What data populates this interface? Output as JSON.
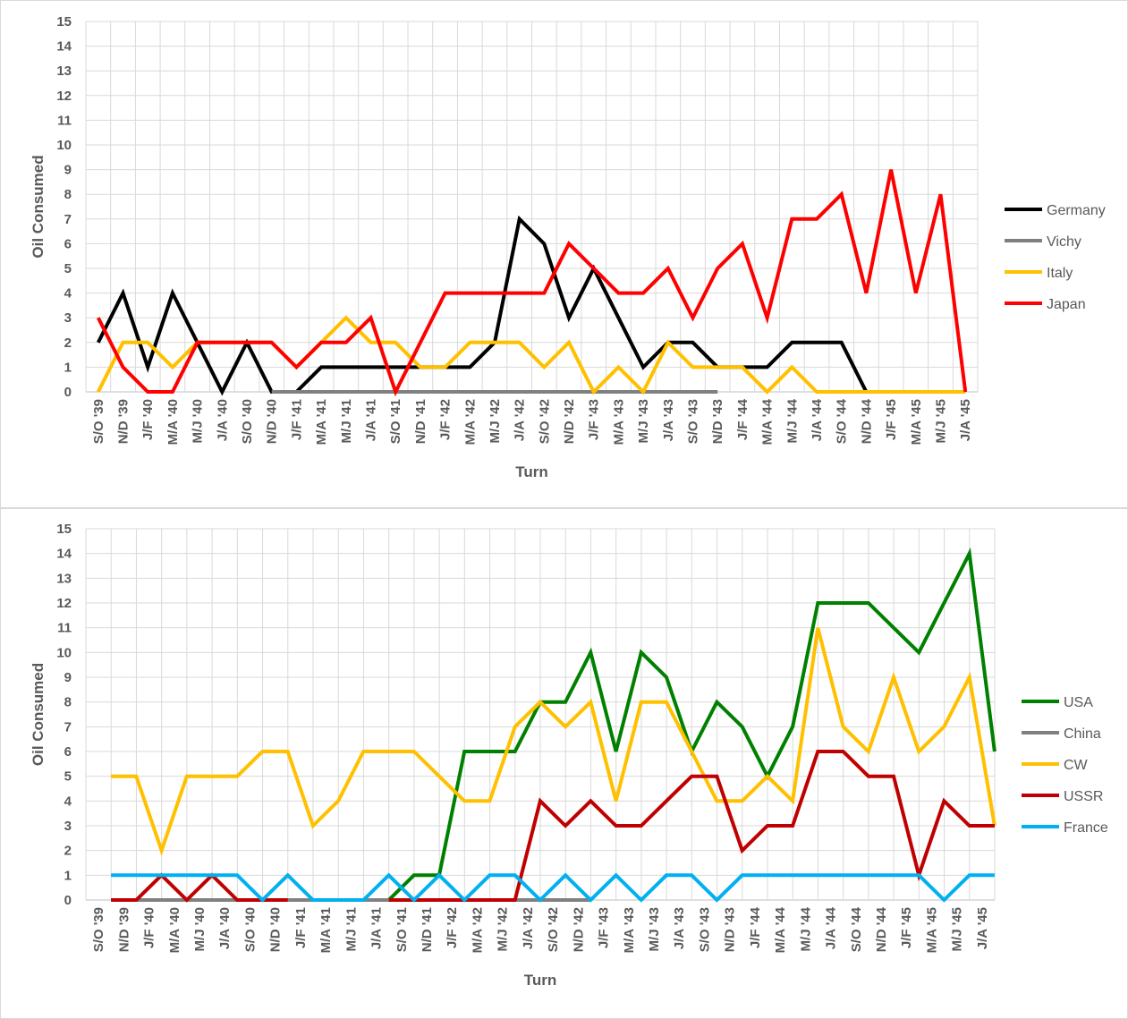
{
  "chart_data": [
    {
      "type": "line",
      "xlabel": "Turn",
      "ylabel": "Oil Consumed",
      "ylim": [
        0,
        15
      ],
      "ytick_step": 1,
      "grid": true,
      "legend_position": "right",
      "categories": [
        "S/O '39",
        "N/D '39",
        "J/F '40",
        "M/A '40",
        "M/J '40",
        "J/A '40",
        "S/O '40",
        "N/D '40",
        "J/F '41",
        "M/A '41",
        "M/J '41",
        "J/A '41",
        "S/O '41",
        "N/D '41",
        "J/F '42",
        "M/A '42",
        "M/J '42",
        "J/A '42",
        "S/O '42",
        "N/D '42",
        "J/F '43",
        "M/A '43",
        "M/J '43",
        "J/A '43",
        "S/O '43",
        "N/D '43",
        "J/F '44",
        "M/A '44",
        "M/J '44",
        "J/A '44",
        "S/O '44",
        "N/D '44",
        "J/F '45",
        "M/A '45",
        "M/J '45",
        "J/A '45"
      ],
      "series": [
        {
          "name": "Germany",
          "color": "#000000",
          "values": [
            2,
            4,
            1,
            4,
            2,
            0,
            2,
            0,
            0,
            1,
            1,
            1,
            1,
            1,
            1,
            1,
            2,
            7,
            6,
            3,
            5,
            3,
            1,
            2,
            2,
            1,
            1,
            1,
            2,
            2,
            2,
            0,
            null,
            null,
            null,
            null
          ]
        },
        {
          "name": "Vichy",
          "color": "#808080",
          "values": [
            null,
            null,
            null,
            null,
            null,
            null,
            null,
            0,
            0,
            0,
            0,
            0,
            0,
            0,
            0,
            0,
            0,
            0,
            0,
            0,
            0,
            0,
            0,
            0,
            0,
            0,
            null,
            null,
            null,
            null,
            null,
            null,
            null,
            null,
            null,
            null
          ]
        },
        {
          "name": "Italy",
          "color": "#ffc000",
          "values": [
            0,
            2,
            2,
            1,
            2,
            2,
            2,
            2,
            1,
            2,
            3,
            2,
            2,
            1,
            1,
            2,
            2,
            2,
            1,
            2,
            0,
            1,
            0,
            2,
            1,
            1,
            1,
            0,
            1,
            0,
            0,
            0,
            0,
            0,
            0,
            0
          ]
        },
        {
          "name": "Japan",
          "color": "#ff0000",
          "values": [
            3,
            1,
            0,
            0,
            2,
            2,
            2,
            2,
            1,
            2,
            2,
            3,
            0,
            2,
            4,
            4,
            4,
            4,
            4,
            6,
            5,
            4,
            4,
            5,
            3,
            5,
            6,
            3,
            7,
            7,
            8,
            4,
            9,
            4,
            8,
            0
          ]
        }
      ]
    },
    {
      "type": "line",
      "xlabel": "Turn",
      "ylabel": "Oil Consumed",
      "ylim": [
        0,
        15
      ],
      "ytick_step": 1,
      "grid": true,
      "legend_position": "right",
      "categories": [
        "S/O '39",
        "N/D '39",
        "J/F '40",
        "M/A '40",
        "M/J '40",
        "J/A '40",
        "S/O '40",
        "N/D '40",
        "J/F '41",
        "M/A '41",
        "M/J '41",
        "J/A '41",
        "S/O '41",
        "N/D '41",
        "J/F '42",
        "M/A '42",
        "M/J '42",
        "J/A '42",
        "S/O '42",
        "N/D '42",
        "J/F '43",
        "M/A '43",
        "M/J '43",
        "J/A '43",
        "S/O '43",
        "N/D '43",
        "J/F '44",
        "M/A '44",
        "M/J '44",
        "J/A '44",
        "S/O '44",
        "N/D '44",
        "J/F '45",
        "M/A '45",
        "M/J '45",
        "J/A '45"
      ],
      "series": [
        {
          "name": "USA",
          "color": "#008000",
          "values": [
            null,
            null,
            null,
            null,
            null,
            null,
            null,
            null,
            null,
            null,
            null,
            0,
            1,
            1,
            6,
            6,
            6,
            8,
            8,
            10,
            6,
            10,
            9,
            6,
            8,
            7,
            5,
            7,
            12,
            12,
            12,
            11,
            10,
            12,
            14,
            6
          ]
        },
        {
          "name": "China",
          "color": "#808080",
          "values": [
            0,
            0,
            0,
            0,
            0,
            0,
            0,
            0,
            0,
            0,
            0,
            0,
            0,
            0,
            0,
            0,
            0,
            0,
            0,
            0,
            null,
            null,
            null,
            null,
            null,
            null,
            null,
            null,
            null,
            null,
            null,
            null,
            null,
            null,
            null,
            null
          ]
        },
        {
          "name": "CW",
          "color": "#ffc000",
          "values": [
            5,
            5,
            2,
            5,
            5,
            5,
            6,
            6,
            3,
            4,
            6,
            6,
            6,
            5,
            4,
            4,
            7,
            8,
            7,
            8,
            4,
            8,
            8,
            6,
            4,
            4,
            5,
            4,
            11,
            7,
            6,
            9,
            6,
            7,
            9,
            3
          ]
        },
        {
          "name": "USSR",
          "color": "#c00000",
          "values": [
            0,
            0,
            1,
            0,
            1,
            0,
            0,
            0,
            null,
            null,
            null,
            0,
            0,
            0,
            0,
            0,
            0,
            4,
            3,
            4,
            3,
            3,
            4,
            5,
            5,
            2,
            3,
            3,
            6,
            6,
            5,
            5,
            1,
            4,
            3,
            3
          ]
        },
        {
          "name": "France",
          "color": "#00b0f0",
          "values": [
            1,
            1,
            1,
            1,
            1,
            1,
            0,
            1,
            0,
            0,
            0,
            1,
            0,
            1,
            0,
            1,
            1,
            0,
            1,
            0,
            1,
            0,
            1,
            1,
            0,
            1,
            1,
            1,
            1,
            1,
            1,
            1,
            1,
            0,
            1,
            1
          ]
        }
      ]
    }
  ]
}
